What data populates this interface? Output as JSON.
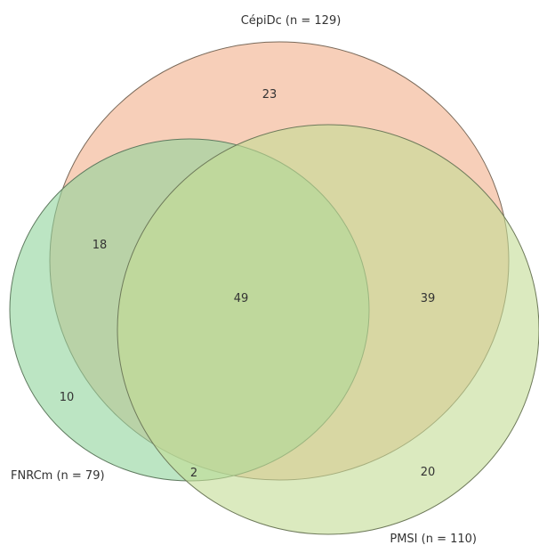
{
  "sets": [
    {
      "id": "cepidc",
      "label": "CépiDc (n = 129)",
      "fill": "#f0a77f"
    },
    {
      "id": "fnrcm",
      "label": "FNRCm (n = 79)",
      "fill": "#8fd39b"
    },
    {
      "id": "pmsi",
      "label": "PMSI (n = 110)",
      "fill": "#c3dc94"
    }
  ],
  "regions": [
    {
      "id": "cepidc-only",
      "sets": [
        "CépiDc"
      ],
      "count": "23"
    },
    {
      "id": "cepidc-fnrcm",
      "sets": [
        "CépiDc",
        "FNRCm"
      ],
      "count": "18"
    },
    {
      "id": "all-three",
      "sets": [
        "CépiDc",
        "FNRCm",
        "PMSI"
      ],
      "count": "49"
    },
    {
      "id": "cepidc-pmsi",
      "sets": [
        "CépiDc",
        "PMSI"
      ],
      "count": "39"
    },
    {
      "id": "fnrcm-only",
      "sets": [
        "FNRCm"
      ],
      "count": "10"
    },
    {
      "id": "fnrcm-pmsi",
      "sets": [
        "FNRCm",
        "PMSI"
      ],
      "count": "2"
    },
    {
      "id": "pmsi-only",
      "sets": [
        "PMSI"
      ],
      "count": "20"
    }
  ]
}
